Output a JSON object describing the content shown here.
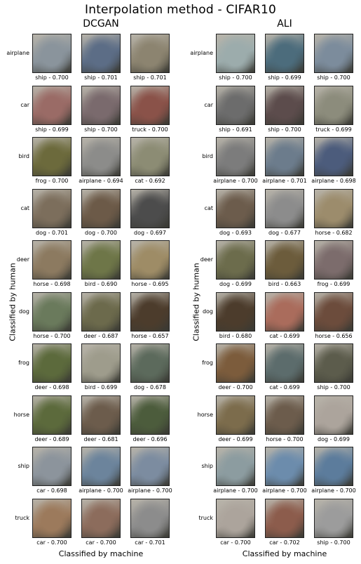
{
  "title": "Interpolation method - CIFAR10",
  "y_axis_label": "Classified by human",
  "x_axis_label": "Classified by machine",
  "panels": [
    {
      "name": "DCGAN",
      "rows": [
        {
          "label": "airplane",
          "captions": [
            "ship - 0.700",
            "ship - 0.701",
            "ship - 0.701"
          ],
          "colors": [
            "#8a949c",
            "#5c6d86",
            "#8c8470"
          ]
        },
        {
          "label": "car",
          "captions": [
            "ship - 0.699",
            "ship - 0.700",
            "truck - 0.700"
          ],
          "colors": [
            "#9a6b66",
            "#7a6a6d",
            "#8a5249"
          ]
        },
        {
          "label": "bird",
          "captions": [
            "frog - 0.700",
            "airplane - 0.694",
            "cat - 0.692"
          ],
          "colors": [
            "#6c6a3c",
            "#8c8c8a",
            "#8c8c74"
          ]
        },
        {
          "label": "cat",
          "captions": [
            "dog - 0.701",
            "dog - 0.700",
            "dog - 0.697"
          ],
          "colors": [
            "#7c6e5c",
            "#6c5a48",
            "#4c4c4c"
          ]
        },
        {
          "label": "deer",
          "captions": [
            "horse - 0.698",
            "bird - 0.690",
            "horse - 0.695"
          ],
          "colors": [
            "#8c7a60",
            "#6e7648",
            "#9e8c66"
          ]
        },
        {
          "label": "dog",
          "captions": [
            "horse - 0.700",
            "deer - 0.687",
            "horse - 0.657"
          ],
          "colors": [
            "#6a7a5c",
            "#6c6a4c",
            "#4c3c2c"
          ]
        },
        {
          "label": "frog",
          "captions": [
            "deer - 0.698",
            "bird - 0.699",
            "dog - 0.678"
          ],
          "colors": [
            "#5c6a3c",
            "#9e9c8c",
            "#5c6a5c"
          ]
        },
        {
          "label": "horse",
          "captions": [
            "deer - 0.689",
            "deer - 0.681",
            "deer - 0.696"
          ],
          "colors": [
            "#5c6a3c",
            "#6c5c4c",
            "#4c5c3c"
          ]
        },
        {
          "label": "ship",
          "captions": [
            "car - 0.698",
            "airplane - 0.700",
            "airplane - 0.700"
          ],
          "colors": [
            "#8c949c",
            "#6c849c",
            "#7c8ca0"
          ]
        },
        {
          "label": "truck",
          "captions": [
            "car - 0.700",
            "car - 0.700",
            "car - 0.701"
          ],
          "colors": [
            "#9c7a5c",
            "#8c6c5c",
            "#8c8c8c"
          ]
        }
      ]
    },
    {
      "name": "ALI",
      "rows": [
        {
          "label": "airplane",
          "captions": [
            "ship - 0.700",
            "ship - 0.699",
            "ship - 0.700"
          ],
          "colors": [
            "#9cacac",
            "#4c6c7c",
            "#7c8c9c"
          ]
        },
        {
          "label": "car",
          "captions": [
            "ship - 0.691",
            "ship - 0.700",
            "truck - 0.699"
          ],
          "colors": [
            "#6c6c6c",
            "#5c4c4c",
            "#8c8c7c"
          ]
        },
        {
          "label": "bird",
          "captions": [
            "airplane - 0.700",
            "airplane - 0.701",
            "airplane - 0.698"
          ],
          "colors": [
            "#7c7c7c",
            "#6c7c8c",
            "#4c5c7c"
          ]
        },
        {
          "label": "cat",
          "captions": [
            "dog - 0.693",
            "dog - 0.677",
            "horse - 0.682"
          ],
          "colors": [
            "#6c5c4c",
            "#8c8c8c",
            "#9c8c6c"
          ]
        },
        {
          "label": "deer",
          "captions": [
            "dog - 0.699",
            "bird - 0.663",
            "frog - 0.699"
          ],
          "colors": [
            "#6c6c4c",
            "#6c5c3c",
            "#7c6c6c"
          ]
        },
        {
          "label": "dog",
          "captions": [
            "bird - 0.680",
            "cat - 0.699",
            "horse - 0.656"
          ],
          "colors": [
            "#4c3c2c",
            "#aa6c5c",
            "#6c4c3c"
          ]
        },
        {
          "label": "frog",
          "captions": [
            "deer - 0.700",
            "cat - 0.699",
            "ship - 0.700"
          ],
          "colors": [
            "#7c5c3c",
            "#5c6c6c",
            "#5c5c4c"
          ]
        },
        {
          "label": "horse",
          "captions": [
            "deer - 0.699",
            "horse - 0.700",
            "dog - 0.699"
          ],
          "colors": [
            "#7c6c4c",
            "#6c5c4c",
            "#aca49c"
          ]
        },
        {
          "label": "ship",
          "captions": [
            "airplane - 0.700",
            "airplane - 0.700",
            "airplane - 0.700"
          ],
          "colors": [
            "#8c9ca0",
            "#6c8cac",
            "#5c7c9c"
          ]
        },
        {
          "label": "truck",
          "captions": [
            "car - 0.700",
            "car - 0.702",
            "ship - 0.700"
          ],
          "colors": [
            "#aca49c",
            "#8c5c4c",
            "#9c9c9c"
          ]
        }
      ]
    }
  ]
}
